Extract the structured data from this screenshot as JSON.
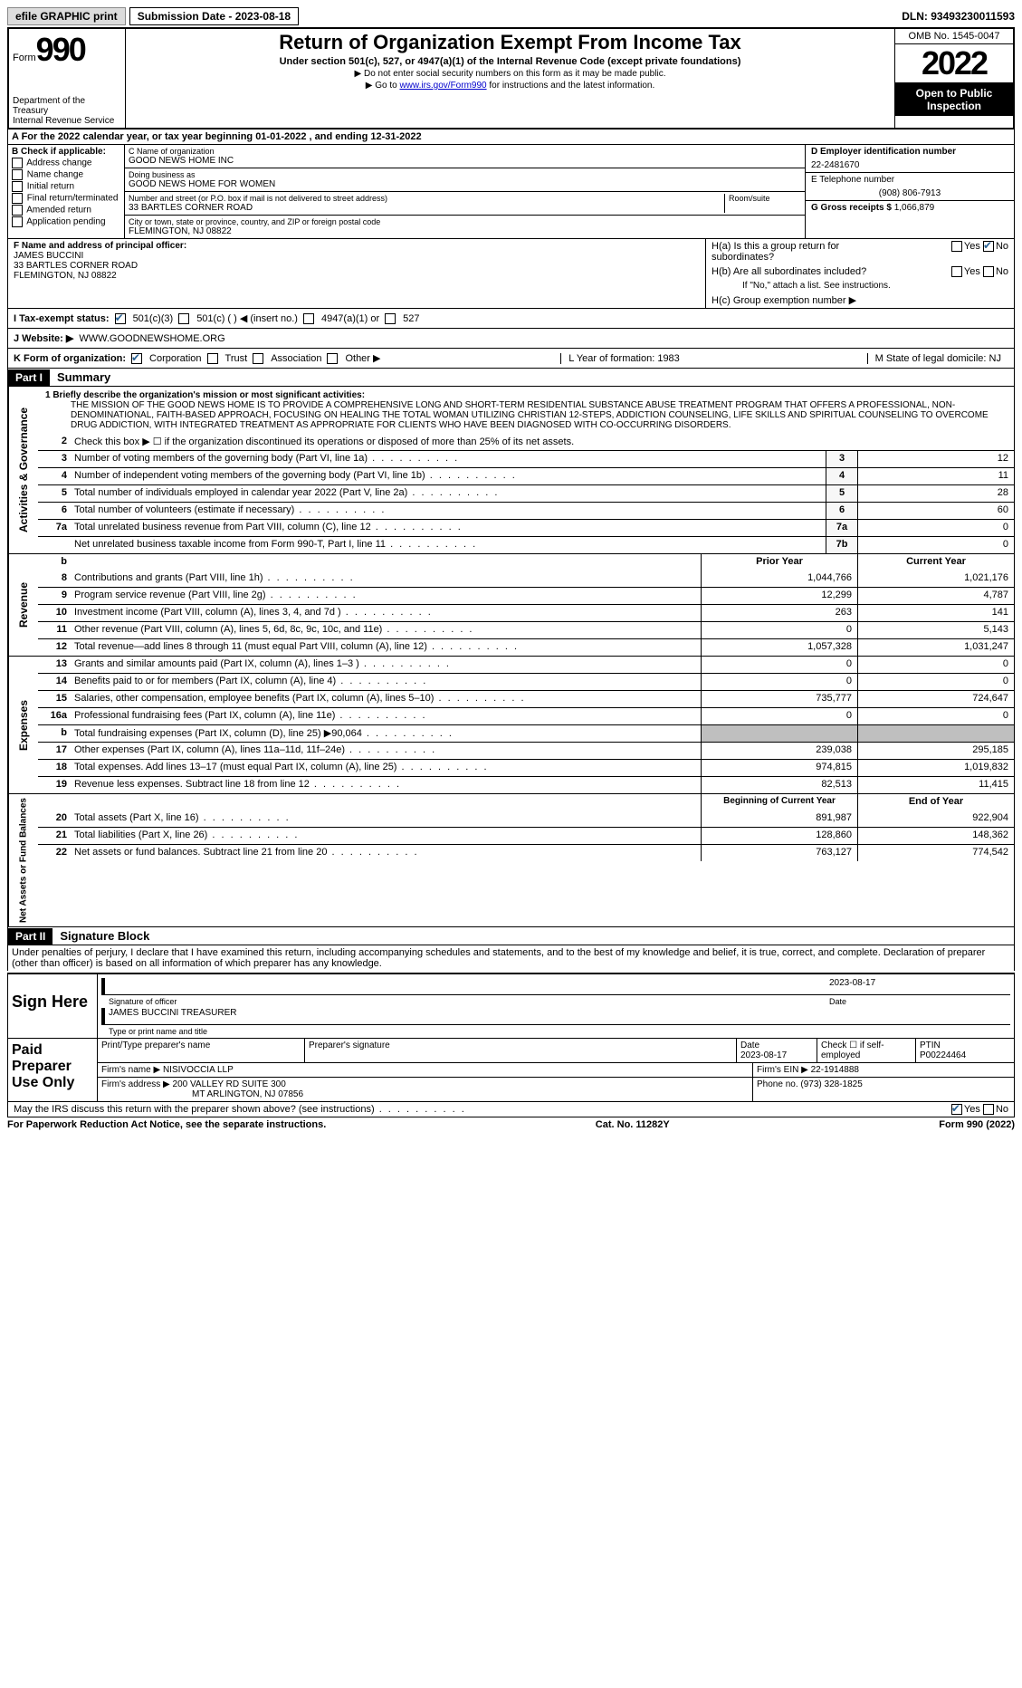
{
  "topbar": {
    "efile": "efile GRAPHIC print",
    "submission": "Submission Date - 2023-08-18",
    "dln": "DLN: 93493230011593"
  },
  "header": {
    "form_word": "Form",
    "form_num": "990",
    "dept": "Department of the Treasury\nInternal Revenue Service",
    "title": "Return of Organization Exempt From Income Tax",
    "sub1": "Under section 501(c), 527, or 4947(a)(1) of the Internal Revenue Code (except private foundations)",
    "sub2": "▶ Do not enter social security numbers on this form as it may be made public.",
    "sub3_pre": "▶ Go to ",
    "sub3_link": "www.irs.gov/Form990",
    "sub3_post": " for instructions and the latest information.",
    "omb": "OMB No. 1545-0047",
    "year": "2022",
    "inspection": "Open to Public Inspection"
  },
  "row_a": "A For the 2022 calendar year, or tax year beginning 01-01-2022    , and ending 12-31-2022",
  "col_b": {
    "label": "B Check if applicable:",
    "opts": [
      "Address change",
      "Name change",
      "Initial return",
      "Final return/terminated",
      "Amended return",
      "Application pending"
    ]
  },
  "col_c": {
    "name_lbl": "C Name of organization",
    "name": "GOOD NEWS HOME INC",
    "dba_lbl": "Doing business as",
    "dba": "GOOD NEWS HOME FOR WOMEN",
    "addr_lbl": "Number and street (or P.O. box if mail is not delivered to street address)",
    "addr": "33 BARTLES CORNER ROAD",
    "room_lbl": "Room/suite",
    "city_lbl": "City or town, state or province, country, and ZIP or foreign postal code",
    "city": "FLEMINGTON, NJ  08822"
  },
  "col_d": {
    "ein_lbl": "D Employer identification number",
    "ein": "22-2481670",
    "tel_lbl": "E Telephone number",
    "tel": "(908) 806-7913",
    "gross_lbl": "G Gross receipts $",
    "gross": "1,066,879"
  },
  "officer": {
    "lbl": "F  Name and address of principal officer:",
    "name": "JAMES BUCCINI",
    "addr1": "33 BARTLES CORNER ROAD",
    "addr2": "FLEMINGTON, NJ  08822"
  },
  "h_section": {
    "ha": "H(a)  Is this a group return for subordinates?",
    "hb": "H(b)  Are all subordinates included?",
    "hb_note": "If \"No,\" attach a list. See instructions.",
    "hc": "H(c)  Group exemption number ▶"
  },
  "tax_status": {
    "lbl": "I  Tax-exempt status:",
    "o1": "501(c)(3)",
    "o2": "501(c) (   ) ◀ (insert no.)",
    "o3": "4947(a)(1) or",
    "o4": "527"
  },
  "website": {
    "lbl": "J  Website: ▶",
    "val": "WWW.GOODNEWSHOME.ORG"
  },
  "korg": {
    "lbl": "K Form of organization:",
    "opts": [
      "Corporation",
      "Trust",
      "Association",
      "Other ▶"
    ],
    "l": "L Year of formation: 1983",
    "m": "M State of legal domicile: NJ"
  },
  "part1": {
    "tag": "Part I",
    "title": "Summary"
  },
  "mission": {
    "lbl": "1  Briefly describe the organization's mission or most significant activities:",
    "text": "THE MISSION OF THE GOOD NEWS HOME IS TO PROVIDE A COMPREHENSIVE LONG AND SHORT-TERM RESIDENTIAL SUBSTANCE ABUSE TREATMENT PROGRAM THAT OFFERS A PROFESSIONAL, NON-DENOMINATIONAL, FAITH-BASED APPROACH, FOCUSING ON HEALING THE TOTAL WOMAN UTILIZING CHRISTIAN 12-STEPS, ADDICTION COUNSELING, LIFE SKILLS AND SPIRITUAL COUNSELING TO OVERCOME DRUG ADDICTION, WITH INTEGRATED TREATMENT AS APPROPRIATE FOR CLIENTS WHO HAVE BEEN DIAGNOSED WITH CO-OCCURRING DISORDERS."
  },
  "gov_lines": [
    {
      "n": "2",
      "d": "Check this box ▶ ☐  if the organization discontinued its operations or disposed of more than 25% of its net assets.",
      "box": "",
      "v": ""
    },
    {
      "n": "3",
      "d": "Number of voting members of the governing body (Part VI, line 1a)",
      "box": "3",
      "v": "12"
    },
    {
      "n": "4",
      "d": "Number of independent voting members of the governing body (Part VI, line 1b)",
      "box": "4",
      "v": "11"
    },
    {
      "n": "5",
      "d": "Total number of individuals employed in calendar year 2022 (Part V, line 2a)",
      "box": "5",
      "v": "28"
    },
    {
      "n": "6",
      "d": "Total number of volunteers (estimate if necessary)",
      "box": "6",
      "v": "60"
    },
    {
      "n": "7a",
      "d": "Total unrelated business revenue from Part VIII, column (C), line 12",
      "box": "7a",
      "v": "0"
    },
    {
      "n": "",
      "d": "Net unrelated business taxable income from Form 990-T, Part I, line 11",
      "box": "7b",
      "v": "0"
    }
  ],
  "rev_hdr": {
    "prior": "Prior Year",
    "current": "Current Year"
  },
  "rev_lines": [
    {
      "n": "8",
      "d": "Contributions and grants (Part VIII, line 1h)",
      "p": "1,044,766",
      "c": "1,021,176"
    },
    {
      "n": "9",
      "d": "Program service revenue (Part VIII, line 2g)",
      "p": "12,299",
      "c": "4,787"
    },
    {
      "n": "10",
      "d": "Investment income (Part VIII, column (A), lines 3, 4, and 7d )",
      "p": "263",
      "c": "141"
    },
    {
      "n": "11",
      "d": "Other revenue (Part VIII, column (A), lines 5, 6d, 8c, 9c, 10c, and 11e)",
      "p": "0",
      "c": "5,143"
    },
    {
      "n": "12",
      "d": "Total revenue—add lines 8 through 11 (must equal Part VIII, column (A), line 12)",
      "p": "1,057,328",
      "c": "1,031,247"
    }
  ],
  "exp_lines": [
    {
      "n": "13",
      "d": "Grants and similar amounts paid (Part IX, column (A), lines 1–3 )",
      "p": "0",
      "c": "0"
    },
    {
      "n": "14",
      "d": "Benefits paid to or for members (Part IX, column (A), line 4)",
      "p": "0",
      "c": "0"
    },
    {
      "n": "15",
      "d": "Salaries, other compensation, employee benefits (Part IX, column (A), lines 5–10)",
      "p": "735,777",
      "c": "724,647"
    },
    {
      "n": "16a",
      "d": "Professional fundraising fees (Part IX, column (A), line 11e)",
      "p": "0",
      "c": "0"
    },
    {
      "n": "b",
      "d": "Total fundraising expenses (Part IX, column (D), line 25) ▶90,064",
      "p": "",
      "c": "",
      "shade": true
    },
    {
      "n": "17",
      "d": "Other expenses (Part IX, column (A), lines 11a–11d, 11f–24e)",
      "p": "239,038",
      "c": "295,185"
    },
    {
      "n": "18",
      "d": "Total expenses. Add lines 13–17 (must equal Part IX, column (A), line 25)",
      "p": "974,815",
      "c": "1,019,832"
    },
    {
      "n": "19",
      "d": "Revenue less expenses. Subtract line 18 from line 12",
      "p": "82,513",
      "c": "11,415"
    }
  ],
  "net_hdr": {
    "prior": "Beginning of Current Year",
    "current": "End of Year"
  },
  "net_lines": [
    {
      "n": "20",
      "d": "Total assets (Part X, line 16)",
      "p": "891,987",
      "c": "922,904"
    },
    {
      "n": "21",
      "d": "Total liabilities (Part X, line 26)",
      "p": "128,860",
      "c": "148,362"
    },
    {
      "n": "22",
      "d": "Net assets or fund balances. Subtract line 21 from line 20",
      "p": "763,127",
      "c": "774,542"
    }
  ],
  "part2": {
    "tag": "Part II",
    "title": "Signature Block"
  },
  "sig_pre": "Under penalties of perjury, I declare that I have examined this return, including accompanying schedules and statements, and to the best of my knowledge and belief, it is true, correct, and complete. Declaration of preparer (other than officer) is based on all information of which preparer has any knowledge.",
  "sig": {
    "here": "Sign Here",
    "sig_lbl": "Signature of officer",
    "date": "2023-08-17",
    "date_lbl": "Date",
    "name": "JAMES BUCCINI TREASURER",
    "name_lbl": "Type or print name and title"
  },
  "prep": {
    "lbl": "Paid Preparer Use Only",
    "h1": "Print/Type preparer's name",
    "h2": "Preparer's signature",
    "h3": "Date",
    "h3v": "2023-08-17",
    "h4": "Check ☐ if self-employed",
    "h5": "PTIN",
    "h5v": "P00224464",
    "firm_lbl": "Firm's name    ▶",
    "firm": "NISIVOCCIA LLP",
    "ein_lbl": "Firm's EIN ▶",
    "ein": "22-1914888",
    "addr_lbl": "Firm's address ▶",
    "addr1": "200 VALLEY RD SUITE 300",
    "addr2": "MT ARLINGTON, NJ  07856",
    "phone_lbl": "Phone no.",
    "phone": "(973) 328-1825"
  },
  "footer": {
    "q": "May the IRS discuss this return with the preparer shown above? (see instructions)",
    "yes": "Yes",
    "no": "No"
  },
  "final": {
    "l": "For Paperwork Reduction Act Notice, see the separate instructions.",
    "m": "Cat. No. 11282Y",
    "r": "Form 990 (2022)"
  },
  "vtabs": {
    "gov": "Activities & Governance",
    "rev": "Revenue",
    "exp": "Expenses",
    "net": "Net Assets or Fund Balances"
  }
}
